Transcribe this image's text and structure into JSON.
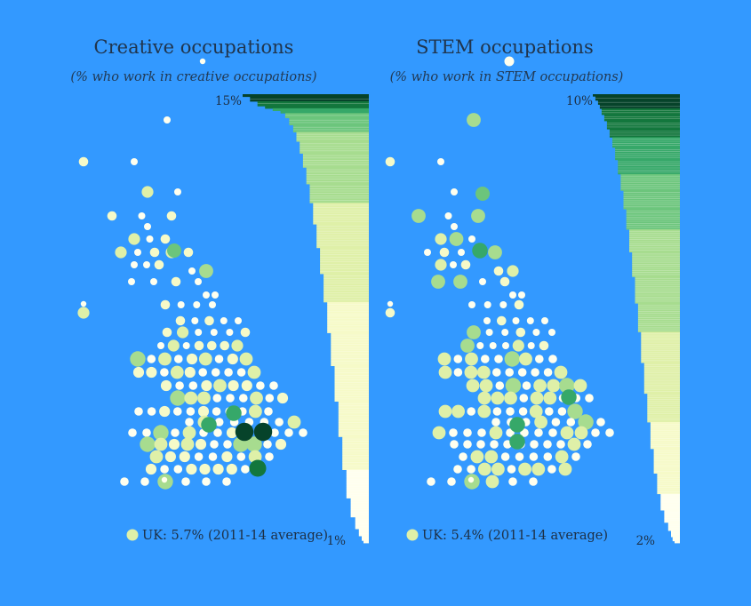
{
  "colors": {
    "background": "#3399ff",
    "scale": [
      "#ffffee",
      "#f6fac8",
      "#dff0a8",
      "#a7dc8f",
      "#6cc57c",
      "#36a869",
      "#13773d",
      "#06432a"
    ]
  },
  "chart_data": [
    {
      "type": "bar",
      "title": "Creative occupations",
      "subtitle": "(% who work in creative occupations)",
      "max_label": "15%",
      "min_label": "1%",
      "xlim": [
        1,
        15
      ],
      "legend": "UK: 5.7% (2011-14 average)",
      "uk_average": 5.7,
      "bins": [
        {
          "value": 15.0,
          "count": 1
        },
        {
          "value": 14.0,
          "count": 2
        },
        {
          "value": 13.0,
          "count": 2
        },
        {
          "value": 12.0,
          "count": 1
        },
        {
          "value": 11.0,
          "count": 1
        },
        {
          "value": 10.0,
          "count": 1
        },
        {
          "value": 9.4,
          "count": 2
        },
        {
          "value": 8.9,
          "count": 3
        },
        {
          "value": 8.4,
          "count": 3
        },
        {
          "value": 8.0,
          "count": 4
        },
        {
          "value": 7.6,
          "count": 5
        },
        {
          "value": 7.2,
          "count": 6
        },
        {
          "value": 6.8,
          "count": 7
        },
        {
          "value": 6.4,
          "count": 8
        },
        {
          "value": 6.0,
          "count": 9
        },
        {
          "value": 5.6,
          "count": 10
        },
        {
          "value": 5.2,
          "count": 11
        },
        {
          "value": 4.8,
          "count": 12
        },
        {
          "value": 4.4,
          "count": 13
        },
        {
          "value": 4.0,
          "count": 14
        },
        {
          "value": 3.6,
          "count": 15
        },
        {
          "value": 3.2,
          "count": 15
        },
        {
          "value": 2.8,
          "count": 14
        },
        {
          "value": 2.4,
          "count": 12
        },
        {
          "value": 2.0,
          "count": 8
        },
        {
          "value": 1.6,
          "count": 5
        },
        {
          "value": 1.3,
          "count": 3
        },
        {
          "value": 1.1,
          "count": 2
        },
        {
          "value": 1.0,
          "count": 1
        }
      ]
    },
    {
      "type": "bar",
      "title": "STEM occupations",
      "subtitle": "(% who work in STEM occupations)",
      "max_label": "10%",
      "min_label": "2%",
      "xlim": [
        2,
        10
      ],
      "legend": "UK: 5.4% (2011-14 average)",
      "uk_average": 5.4,
      "bins": [
        {
          "value": 10.0,
          "count": 1
        },
        {
          "value": 9.7,
          "count": 2
        },
        {
          "value": 9.4,
          "count": 2
        },
        {
          "value": 9.2,
          "count": 2
        },
        {
          "value": 9.0,
          "count": 3
        },
        {
          "value": 8.7,
          "count": 3
        },
        {
          "value": 8.4,
          "count": 4
        },
        {
          "value": 8.1,
          "count": 4
        },
        {
          "value": 7.8,
          "count": 5
        },
        {
          "value": 7.5,
          "count": 6
        },
        {
          "value": 7.2,
          "count": 7
        },
        {
          "value": 6.9,
          "count": 8
        },
        {
          "value": 6.6,
          "count": 9
        },
        {
          "value": 6.3,
          "count": 10
        },
        {
          "value": 6.0,
          "count": 11
        },
        {
          "value": 5.7,
          "count": 12
        },
        {
          "value": 5.4,
          "count": 13
        },
        {
          "value": 5.1,
          "count": 14
        },
        {
          "value": 4.8,
          "count": 15
        },
        {
          "value": 4.5,
          "count": 15
        },
        {
          "value": 4.2,
          "count": 14
        },
        {
          "value": 3.9,
          "count": 13
        },
        {
          "value": 3.6,
          "count": 12
        },
        {
          "value": 3.3,
          "count": 10
        },
        {
          "value": 3.0,
          "count": 8
        },
        {
          "value": 2.7,
          "count": 6
        },
        {
          "value": 2.4,
          "count": 4
        },
        {
          "value": 2.2,
          "count": 3
        },
        {
          "value": 2.1,
          "count": 2
        },
        {
          "value": 2.0,
          "count": 1
        }
      ]
    }
  ]
}
